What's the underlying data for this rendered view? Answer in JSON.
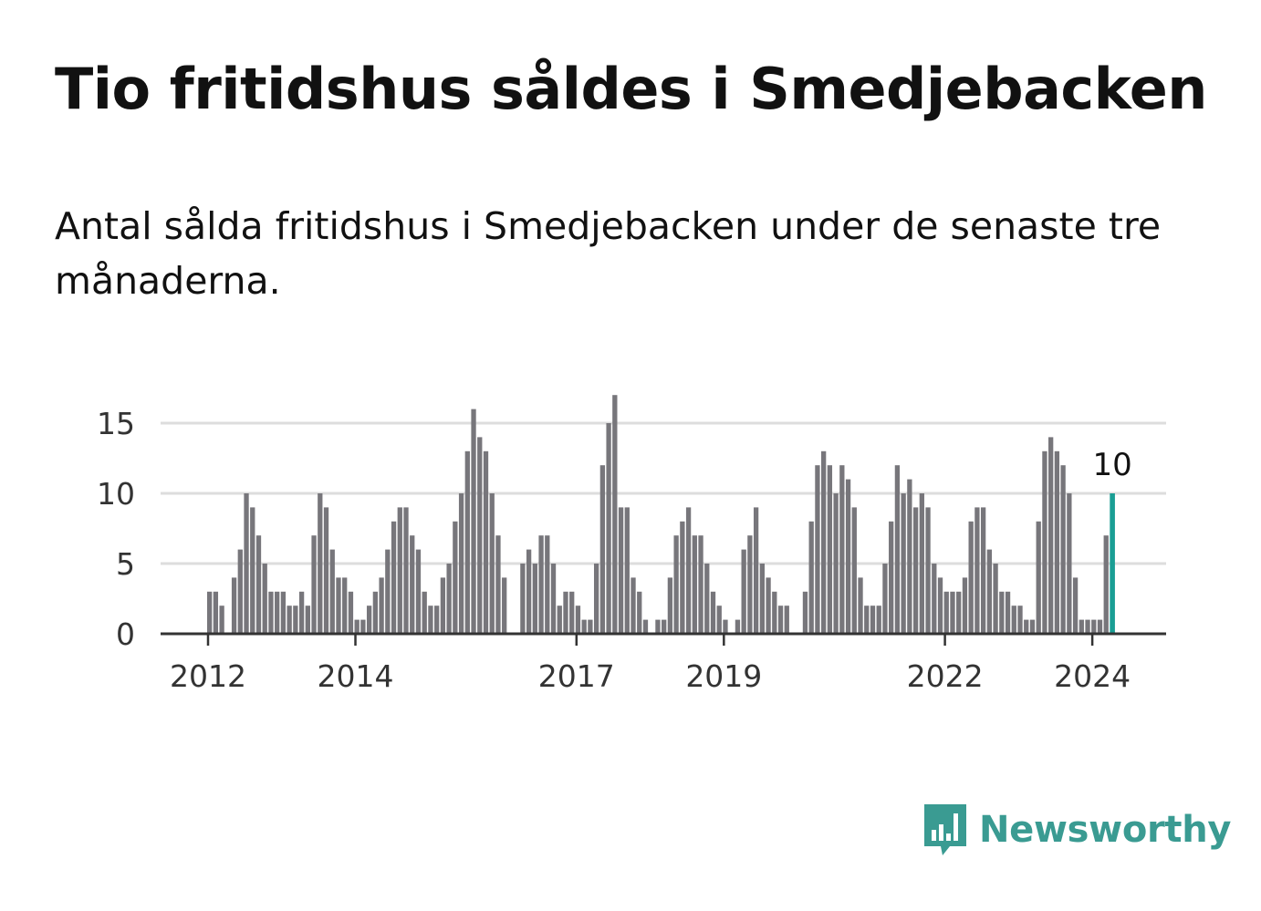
{
  "title": "Tio fritidshus såldes i Smedjebacken",
  "subtitle": "Antal sålda fritidshus i Smedjebacken under de senaste tre månaderna.",
  "logo": {
    "text": "Newsworthy",
    "icon": "bar-chart-speech-bubble-icon"
  },
  "colors": {
    "bar": "#77767b",
    "highlight": "#1a9e94",
    "grid": "#dddddd",
    "axis": "#333333",
    "brand": "#3a9b92"
  },
  "chart_data": {
    "type": "bar",
    "title": "",
    "xlabel": "",
    "ylabel": "",
    "ylim": [
      0,
      17
    ],
    "yticks": [
      0,
      5,
      10,
      15
    ],
    "xtick_labels": [
      "2012",
      "2014",
      "2017",
      "2019",
      "2022",
      "2024"
    ],
    "grid": true,
    "start_month": "2011-05",
    "end_month": "2024-05",
    "highlight_last": true,
    "last_value_label": "10",
    "values": [
      0,
      0,
      0,
      0,
      0,
      0,
      0,
      0,
      3,
      3,
      2,
      0,
      4,
      6,
      10,
      9,
      7,
      5,
      3,
      3,
      3,
      2,
      2,
      3,
      2,
      7,
      10,
      9,
      6,
      4,
      4,
      3,
      1,
      1,
      2,
      3,
      4,
      6,
      8,
      9,
      9,
      7,
      6,
      3,
      2,
      2,
      4,
      5,
      8,
      10,
      13,
      16,
      14,
      13,
      10,
      7,
      4,
      0,
      0,
      5,
      6,
      5,
      7,
      7,
      5,
      2,
      3,
      3,
      2,
      1,
      1,
      5,
      12,
      15,
      17,
      9,
      9,
      4,
      3,
      1,
      0,
      1,
      1,
      4,
      7,
      8,
      9,
      7,
      7,
      5,
      3,
      2,
      1,
      0,
      1,
      6,
      7,
      9,
      5,
      4,
      3,
      2,
      2,
      0,
      0,
      3,
      8,
      12,
      13,
      12,
      10,
      12,
      11,
      9,
      4,
      2,
      2,
      2,
      5,
      8,
      12,
      10,
      11,
      9,
      10,
      9,
      5,
      4,
      3,
      3,
      3,
      4,
      8,
      9,
      9,
      6,
      5,
      3,
      3,
      2,
      2,
      1,
      1,
      8,
      13,
      14,
      13,
      12,
      10,
      4,
      1,
      1,
      1,
      1,
      7,
      10
    ]
  }
}
